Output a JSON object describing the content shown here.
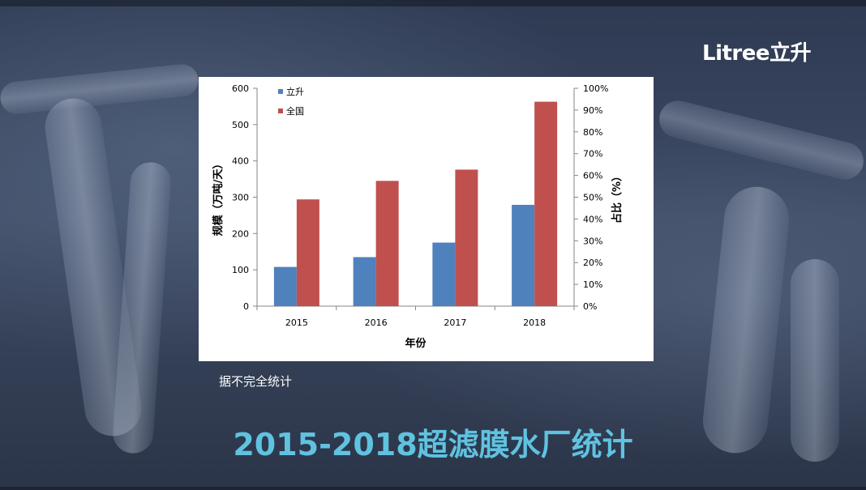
{
  "brand": {
    "logo_text": "Litree立升"
  },
  "note": "据不完全统计",
  "title": "2015-2018超滤膜水厂统计",
  "colors": {
    "title": "#5fc3e0",
    "litree": "#4f81bd",
    "national": "#c0504d"
  },
  "chart_data": {
    "type": "bar",
    "categories": [
      "2015",
      "2016",
      "2017",
      "2018"
    ],
    "series": [
      {
        "name": "立升",
        "values": [
          108,
          135,
          175,
          279
        ]
      },
      {
        "name": "全国",
        "values": [
          294,
          345,
          376,
          563
        ]
      }
    ],
    "xlabel": "年份",
    "ylabel": "规模（万吨/天）",
    "y2label": "占比（%）",
    "ylim": [
      0,
      600
    ],
    "yticks": [
      "0",
      "100",
      "200",
      "300",
      "400",
      "500",
      "600"
    ],
    "y2ticks": [
      "0%",
      "10%",
      "20%",
      "30%",
      "40%",
      "50%",
      "60%",
      "70%",
      "80%",
      "90%",
      "100%"
    ],
    "legend_position": "top-left",
    "grid": false
  }
}
